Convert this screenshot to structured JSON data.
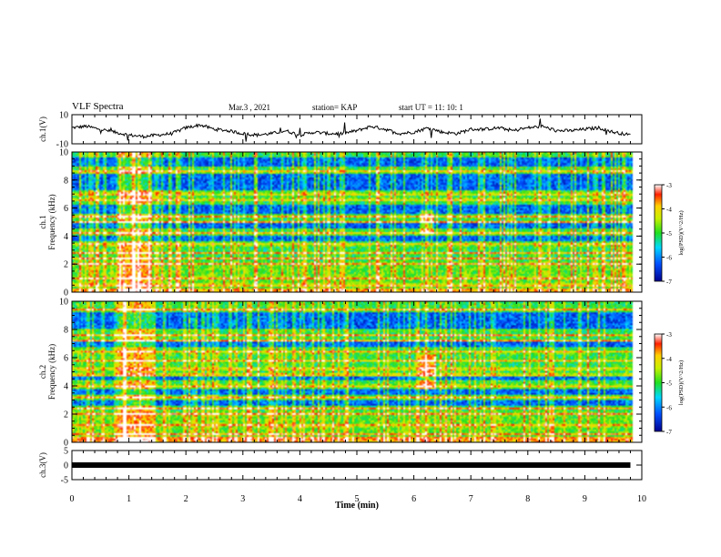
{
  "header": {
    "title": "VLF Spectra",
    "date": "Mar.3 , 2021",
    "station": "station= KAP",
    "start": "start UT = 11: 10: 1"
  },
  "chart_data": [
    {
      "type": "line",
      "name": "ch1-waveform",
      "ylabel": "ch.1(V)",
      "ylim": [
        -10,
        10
      ],
      "yticks": [
        "10",
        "-10"
      ],
      "xlim": [
        0,
        10
      ],
      "x": [
        0,
        0.25,
        0.5,
        0.75,
        1.0,
        1.25,
        1.5,
        1.75,
        2.0,
        2.25,
        2.5,
        2.75,
        3.0,
        3.25,
        3.5,
        3.75,
        4.0,
        4.25,
        4.5,
        4.75,
        5.0,
        5.25,
        5.5,
        5.75,
        6.0,
        6.25,
        6.5,
        6.75,
        7.0,
        7.25,
        7.5,
        7.75,
        8.0,
        8.25,
        8.5,
        8.75,
        9.0,
        9.25,
        9.5,
        9.8
      ],
      "values": [
        1,
        2,
        0,
        -2,
        -4,
        -5,
        -4,
        -3,
        1,
        3,
        0,
        -1,
        -3,
        -4,
        -3,
        -1,
        -4,
        -2,
        -3,
        -3,
        -1,
        2,
        0,
        -3,
        -2,
        1,
        -2,
        -3,
        0,
        0,
        1,
        -1,
        1,
        2,
        -1,
        -1,
        0,
        1,
        -2,
        -4
      ]
    },
    {
      "type": "heatmap",
      "name": "ch1-spectrogram",
      "ylabel": "ch.1\nFrequency (kHz)",
      "ylim": [
        0,
        10
      ],
      "yticks": [
        "0",
        "2",
        "4",
        "6",
        "8",
        "10"
      ],
      "xlim": [
        0,
        10
      ],
      "colorbar": {
        "label": "log(PSD)(V^2/Hz)",
        "range": [
          -7,
          -3
        ],
        "ticks": [
          "-3",
          "-4",
          "-5",
          "-6",
          "-7"
        ]
      },
      "strong_bands_khz": [
        0.5,
        1.0,
        2.0,
        2.4,
        2.8,
        3.4,
        4.2,
        5.0,
        5.4,
        6.6,
        7.0,
        8.6
      ],
      "quiet_bands_khz": [
        [
          3.6,
          4.0
        ],
        [
          4.5,
          4.9
        ],
        [
          5.6,
          6.2
        ],
        [
          7.3,
          8.4
        ],
        [
          9.0,
          9.6
        ]
      ],
      "burst_time_min": [
        0.8,
        1.4
      ],
      "emission": {
        "time_min": [
          6.1,
          6.35
        ],
        "freq_khz": [
          4.2,
          5.8
        ]
      }
    },
    {
      "type": "heatmap",
      "name": "ch2-spectrogram",
      "ylabel": "ch.2\nFrequency (kHz)",
      "ylim": [
        0,
        10
      ],
      "yticks": [
        "0",
        "2",
        "4",
        "6",
        "8",
        "10"
      ],
      "xlim": [
        0,
        10
      ],
      "colorbar": {
        "label": "log(PSD)(V^2/Hz)",
        "range": [
          -7,
          -3
        ],
        "ticks": [
          "-3",
          "-4",
          "-5",
          "-6",
          "-7"
        ]
      },
      "strong_bands_khz": [
        0.3,
        0.6,
        1.2,
        2.0,
        2.4,
        3.2,
        4.0,
        4.8,
        5.2,
        5.8,
        6.4,
        7.2,
        7.6,
        9.4
      ],
      "quiet_bands_khz": [
        [
          2.6,
          3.0
        ],
        [
          3.4,
          3.8
        ],
        [
          4.4,
          4.7
        ],
        [
          6.8,
          7.1
        ],
        [
          8.0,
          9.2
        ]
      ],
      "burst_time_min": [
        0.8,
        1.4
      ],
      "emission": {
        "time_min": [
          6.1,
          6.4
        ],
        "freq_khz": [
          3.8,
          6.2
        ]
      }
    },
    {
      "type": "line",
      "name": "ch3-waveform",
      "ylabel": "ch.3(V)",
      "ylim": [
        -5,
        5
      ],
      "yticks": [
        "5",
        "0",
        "-5"
      ],
      "xlim": [
        0,
        10
      ],
      "x": [
        0,
        9.8
      ],
      "values": [
        0,
        0
      ]
    }
  ],
  "xaxis": {
    "label": "Time (min)",
    "ticks": [
      "0",
      "1",
      "2",
      "3",
      "4",
      "5",
      "6",
      "7",
      "8",
      "9",
      "10"
    ]
  }
}
